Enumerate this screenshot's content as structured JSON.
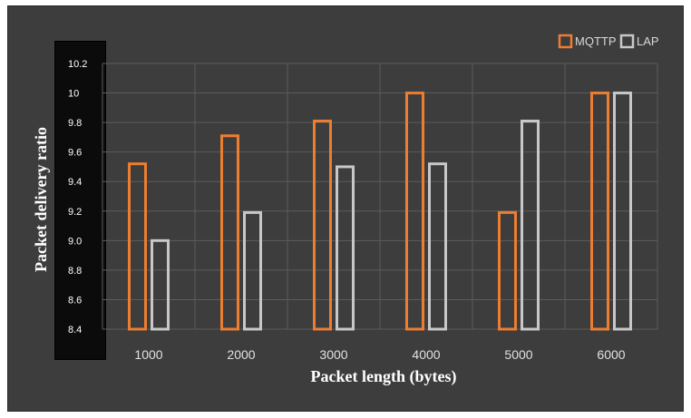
{
  "chart_data": {
    "type": "bar",
    "xlabel": "Packet length (bytes)",
    "ylabel": "Packet delivery ratio",
    "categories": [
      "1000",
      "2000",
      "3000",
      "4000",
      "5000",
      "6000"
    ],
    "series": [
      {
        "name": "MQTTP",
        "values": [
          9.52,
          9.71,
          9.81,
          10.0,
          9.19,
          10.0
        ]
      },
      {
        "name": "LAP",
        "values": [
          9.0,
          9.19,
          9.5,
          9.52,
          9.81,
          10.0
        ]
      }
    ],
    "yticks": [
      "8.4",
      "8.6",
      "8.8",
      "9.0",
      "9.2",
      "9.4",
      "9.6",
      "9.8",
      "10",
      "10.2"
    ],
    "ylim": [
      8.4,
      10.2
    ],
    "grid": true,
    "legend": "top-right",
    "colors": {
      "MQTTP": "#ed7d31",
      "LAP": "#c8c8c8",
      "background": "#3d3d3d"
    }
  }
}
